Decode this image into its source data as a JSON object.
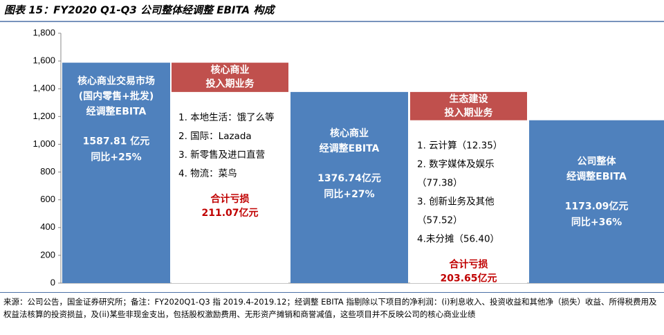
{
  "chart_data": {
    "type": "waterfall",
    "title": "图表 15：FY2020 Q1-Q3 公司整体经调整 EBITA 构成",
    "ylim": [
      0,
      1800
    ],
    "yticks": [
      0,
      200,
      400,
      600,
      800,
      {
        "value": 1000,
        "label": "1,000"
      },
      {
        "value": 1200,
        "label": "1,200"
      },
      {
        "value": 1400,
        "label": "1,400"
      },
      {
        "value": 1600,
        "label": "1,600"
      },
      {
        "value": 1800,
        "label": "1,800"
      }
    ],
    "colors": {
      "absolute": "#4f81bd",
      "decrease": "#c0504d",
      "loss_text": "#c00000"
    },
    "measure": [
      "absolute",
      "decrease",
      "absolute",
      "decrease",
      "absolute"
    ],
    "values": [
      1587.81,
      211.07,
      1376.74,
      203.65,
      1173.09
    ],
    "value_labels": [
      "1587.81 亿元",
      "211.07亿元",
      "1376.74亿元",
      "203.65亿元",
      "1173.09亿元"
    ],
    "labels": [
      [
        "核心商业交易市场",
        "(国内零售+批发)",
        "经调整EBITA"
      ],
      [
        "核心商业",
        "投入期业务"
      ],
      [
        "核心商业",
        "经调整EBITA"
      ],
      [
        "生态建设",
        "投入期业务"
      ],
      [
        "公司整体",
        "经调整EBITA"
      ]
    ],
    "growth": [
      "同比+25%",
      null,
      "同比+27%",
      null,
      "同比+36%"
    ],
    "items": [
      null,
      [
        "1. 本地生活：饿了么等",
        "2. 国际：Lazada",
        "3. 新零售及进口直营",
        "4. 物流：菜鸟"
      ],
      null,
      [
        "1. 云计算（12.35）",
        "2. 数字媒体及娱乐",
        "（77.38）",
        "3. 创新业务及其他",
        "（57.52）",
        "4.未分摊（56.40）"
      ],
      null
    ],
    "total_label": [
      null,
      "合计亏损",
      null,
      "合计亏损",
      null
    ]
  },
  "footnote": "来源：公司公告，国金证券研究所；备注：FY2020Q1-Q3 指 2019.4-2019.12；经调整 EBITA 指剔除以下项目的净利润：(i)利息收入、投资收益和其他净（损失）收益、所得税费用及权益法核算的投资损益，及(ii)某些非现金支出，包括股权激励费用、无形资产摊销和商誉减值，这些项目并不反映公司的核心商业业绩"
}
